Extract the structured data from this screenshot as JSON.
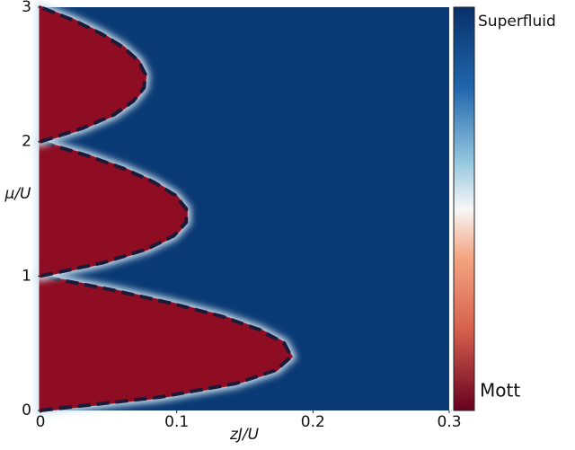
{
  "chart_data": {
    "type": "phase-diagram",
    "xlabel": "zJ/U",
    "ylabel": "μ/U",
    "xlim": [
      0,
      0.3
    ],
    "xticks": [
      0,
      0.1,
      0.2,
      0.3
    ],
    "ylim": [
      0,
      3
    ],
    "yticks": [
      0,
      1,
      2,
      3
    ],
    "background_color": "#0a3a75",
    "fill_color": "#8e0d22",
    "line_color": "#1c1838",
    "series": [
      {
        "x": [
          0,
          0.088,
          0.143,
          0.173,
          0.184,
          0.179,
          0.161,
          0.133,
          0.095,
          0.051,
          0
        ],
        "y": [
          0,
          0.1,
          0.2,
          0.3,
          0.4,
          0.5,
          0.6,
          0.7,
          0.8,
          0.9,
          1.0
        ]
      },
      {
        "x": [
          0,
          0.046,
          0.078,
          0.098,
          0.107,
          0.107,
          0.099,
          0.083,
          0.061,
          0.033,
          0
        ],
        "y": [
          1.0,
          1.1,
          1.2,
          1.3,
          1.4,
          1.5,
          1.6,
          1.7,
          1.8,
          1.9,
          2.0
        ]
      },
      {
        "x": [
          0,
          0.031,
          0.054,
          0.068,
          0.076,
          0.077,
          0.072,
          0.061,
          0.045,
          0.025,
          0
        ],
        "y": [
          2.0,
          2.1,
          2.2,
          2.3,
          2.4,
          2.5,
          2.6,
          2.7,
          2.8,
          2.9,
          3.0
        ]
      }
    ],
    "colorbar": {
      "labels": [
        "Superfluid",
        "Mott"
      ]
    }
  }
}
